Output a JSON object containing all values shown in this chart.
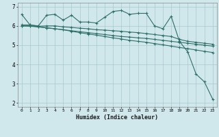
{
  "xlabel": "Humidex (Indice chaleur)",
  "ylabel": "",
  "bg_color": "#d0e8ec",
  "grid_color": "#a8c8cc",
  "line_color": "#2e6e68",
  "xlim": [
    -0.5,
    23.5
  ],
  "ylim": [
    1.8,
    7.2
  ],
  "yticks": [
    2,
    3,
    4,
    5,
    6,
    7
  ],
  "xticks": [
    0,
    1,
    2,
    3,
    4,
    5,
    6,
    7,
    8,
    9,
    10,
    11,
    12,
    13,
    14,
    15,
    16,
    17,
    18,
    19,
    20,
    21,
    22,
    23
  ],
  "series": [
    {
      "x": [
        0,
        1,
        2,
        3,
        4,
        5,
        6,
        7,
        8,
        9,
        10,
        11,
        12,
        13,
        14,
        15,
        16,
        17,
        18,
        19,
        20,
        21,
        22,
        23
      ],
      "y": [
        6.6,
        6.05,
        6.0,
        6.55,
        6.6,
        6.3,
        6.55,
        6.2,
        6.2,
        6.15,
        6.45,
        6.75,
        6.8,
        6.6,
        6.65,
        6.65,
        6.0,
        5.85,
        6.5,
        5.2,
        4.65,
        3.5,
        3.1,
        2.2
      ]
    },
    {
      "x": [
        0,
        1,
        2,
        3,
        4,
        5,
        6,
        7,
        8,
        9,
        10,
        11,
        12,
        13,
        14,
        15,
        16,
        17,
        18,
        19,
        20,
        21,
        22,
        23
      ],
      "y": [
        6.05,
        6.05,
        5.98,
        6.0,
        6.0,
        5.95,
        5.92,
        5.88,
        5.85,
        5.8,
        5.78,
        5.75,
        5.72,
        5.68,
        5.65,
        5.6,
        5.55,
        5.5,
        5.45,
        5.3,
        5.2,
        5.15,
        5.1,
        5.05
      ]
    },
    {
      "x": [
        0,
        1,
        2,
        3,
        4,
        5,
        6,
        7,
        8,
        9,
        10,
        11,
        12,
        13,
        14,
        15,
        16,
        17,
        18,
        19,
        20,
        21,
        22,
        23
      ],
      "y": [
        6.0,
        6.0,
        5.95,
        5.9,
        5.85,
        5.8,
        5.75,
        5.7,
        5.65,
        5.6,
        5.55,
        5.5,
        5.45,
        5.42,
        5.38,
        5.35,
        5.3,
        5.25,
        5.2,
        5.15,
        5.1,
        5.05,
        5.0,
        4.95
      ]
    },
    {
      "x": [
        0,
        1,
        2,
        3,
        4,
        5,
        6,
        7,
        8,
        9,
        10,
        11,
        12,
        13,
        14,
        15,
        16,
        17,
        18,
        19,
        20,
        21,
        22,
        23
      ],
      "y": [
        6.0,
        5.98,
        5.95,
        5.9,
        5.85,
        5.8,
        5.72,
        5.65,
        5.58,
        5.52,
        5.45,
        5.38,
        5.32,
        5.25,
        5.2,
        5.15,
        5.08,
        5.02,
        4.95,
        4.88,
        4.82,
        4.75,
        4.68,
        4.62
      ]
    }
  ]
}
